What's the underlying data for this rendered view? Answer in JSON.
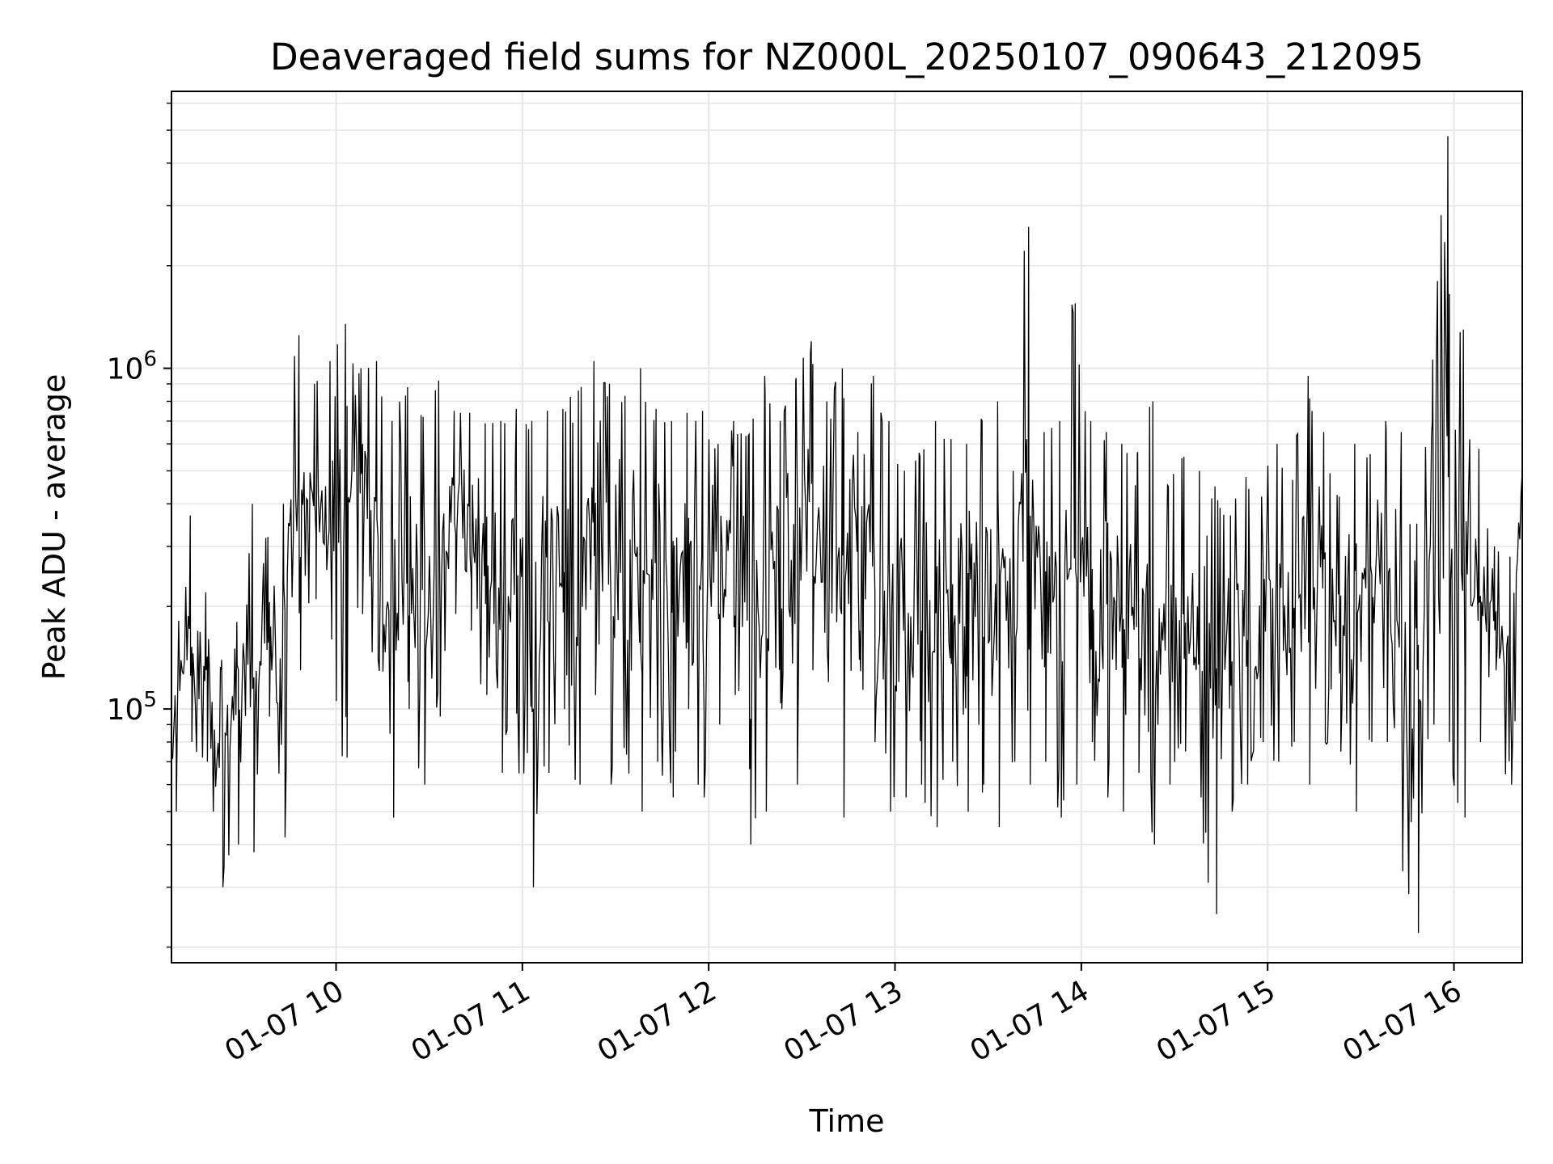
{
  "chart_data": {
    "type": "line",
    "title": "Deaveraged field sums for NZ000L_20250107_090643_212095",
    "xlabel": "Time",
    "ylabel": "Peak ADU - average",
    "x_type": "time",
    "x_range": [
      "01-07 09:07",
      "01-07 16:22"
    ],
    "xticks": [
      "01-07 10",
      "01-07 11",
      "01-07 12",
      "01-07 13",
      "01-07 14",
      "01-07 15",
      "01-07 16"
    ],
    "y_scale": "log",
    "ylim": [
      18000,
      6500000
    ],
    "yticks": [
      {
        "value": 100000,
        "base": "10",
        "exp": "5"
      },
      {
        "value": 1000000,
        "base": "10",
        "exp": "6"
      }
    ],
    "grid": true,
    "line_color": "#000000",
    "series": [
      {
        "x": [
          "01-07 09:07",
          "01-07 09:12",
          "01-07 09:17",
          "01-07 09:22",
          "01-07 09:27",
          "01-07 09:32",
          "01-07 09:37",
          "01-07 09:42",
          "01-07 09:47",
          "01-07 09:52",
          "01-07 09:57",
          "01-07 10:02",
          "01-07 10:07",
          "01-07 10:12",
          "01-07 10:17",
          "01-07 10:22",
          "01-07 10:27",
          "01-07 10:32",
          "01-07 10:37",
          "01-07 10:42",
          "01-07 10:47",
          "01-07 10:52",
          "01-07 10:57",
          "01-07 11:02",
          "01-07 11:07",
          "01-07 11:12",
          "01-07 11:17",
          "01-07 11:22",
          "01-07 11:27",
          "01-07 11:32",
          "01-07 11:37",
          "01-07 11:42",
          "01-07 11:47",
          "01-07 11:52",
          "01-07 11:57",
          "01-07 12:02",
          "01-07 12:07",
          "01-07 12:12",
          "01-07 12:17",
          "01-07 12:22",
          "01-07 12:27",
          "01-07 12:32",
          "01-07 12:37",
          "01-07 12:42",
          "01-07 12:47",
          "01-07 12:52",
          "01-07 12:57",
          "01-07 13:02",
          "01-07 13:07",
          "01-07 13:12",
          "01-07 13:17",
          "01-07 13:22",
          "01-07 13:27",
          "01-07 13:32",
          "01-07 13:37",
          "01-07 13:42",
          "01-07 13:47",
          "01-07 13:52",
          "01-07 13:57",
          "01-07 14:02",
          "01-07 14:07",
          "01-07 14:12",
          "01-07 14:17",
          "01-07 14:22",
          "01-07 14:27",
          "01-07 14:32",
          "01-07 14:37",
          "01-07 14:42",
          "01-07 14:47",
          "01-07 14:52",
          "01-07 14:57",
          "01-07 15:02",
          "01-07 15:07",
          "01-07 15:12",
          "01-07 15:17",
          "01-07 15:22",
          "01-07 15:27",
          "01-07 15:32",
          "01-07 15:37",
          "01-07 15:42",
          "01-07 15:47",
          "01-07 15:52",
          "01-07 15:57",
          "01-07 16:02",
          "01-07 16:07",
          "01-07 16:12",
          "01-07 16:17",
          "01-07 16:22"
        ],
        "min": [
          50000,
          80000,
          70000,
          30000,
          40000,
          38000,
          95000,
          42000,
          130000,
          210000,
          160000,
          72000,
          190000,
          140000,
          48000,
          100000,
          60000,
          95000,
          190000,
          170000,
          110000,
          65000,
          100000,
          30000,
          65000,
          100000,
          60000,
          110000,
          60000,
          80000,
          50000,
          70000,
          55000,
          100000,
          55000,
          90000,
          110000,
          40000,
          50000,
          100000,
          60000,
          130000,
          120000,
          48000,
          170000,
          80000,
          50000,
          55000,
          60000,
          45000,
          70000,
          50000,
          60000,
          45000,
          70000,
          60000,
          70000,
          48000,
          60000,
          80000,
          55000,
          50000,
          65000,
          40000,
          60000,
          75000,
          55000,
          25000,
          50000,
          60000,
          80000,
          70000,
          80000,
          60000,
          80000,
          75000,
          50000,
          80000,
          80000,
          40000,
          22000,
          90000,
          80000,
          48000,
          80000,
          130000,
          60000,
          130000
        ],
        "max": [
          100000,
          370000,
          220000,
          130000,
          180000,
          400000,
          320000,
          400000,
          1250000,
          900000,
          1050000,
          1350000,
          1000000,
          1050000,
          700000,
          880000,
          720000,
          920000,
          750000,
          740000,
          690000,
          700000,
          760000,
          700000,
          750000,
          760000,
          860000,
          1050000,
          900000,
          830000,
          1000000,
          760000,
          700000,
          740000,
          750000,
          600000,
          700000,
          640000,
          950000,
          700000,
          920000,
          1200000,
          800000,
          1000000,
          650000,
          950000,
          700000,
          500000,
          550000,
          700000,
          620000,
          600000,
          700000,
          800000,
          500000,
          2600000,
          650000,
          700000,
          1550000,
          700000,
          650000,
          600000,
          560000,
          800000,
          450000,
          550000,
          500000,
          450000,
          370000,
          480000,
          420000,
          600000,
          470000,
          950000,
          650000,
          420000,
          600000,
          560000,
          700000,
          650000,
          350000,
          700000,
          4800000,
          1300000,
          580000,
          300000,
          280000,
          750000
        ]
      }
    ]
  }
}
